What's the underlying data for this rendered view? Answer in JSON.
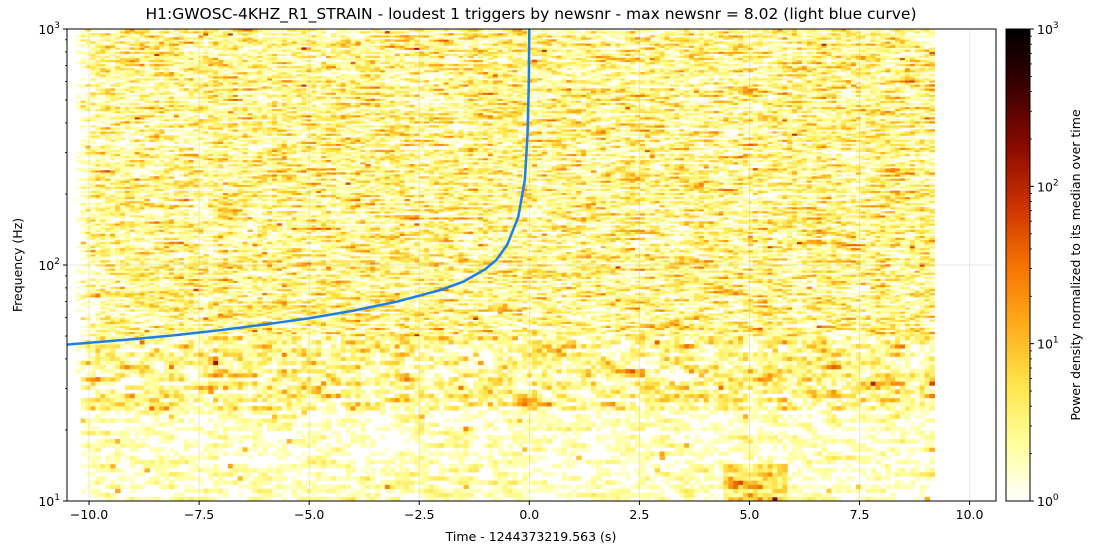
{
  "chart_data": {
    "type": "heatmap",
    "title": "H1:GWOSC-4KHZ_R1_STRAIN - loudest 1 triggers by newsnr - max newsnr = 8.02 (light blue curve)",
    "xlabel": "Time - 1244373219.563 (s)",
    "ylabel": "Frequency (Hz)",
    "xlim": [
      -10.5,
      10.6
    ],
    "ylim": [
      10,
      1000
    ],
    "yscale": "log",
    "grid": true,
    "x_ticks": [
      -10.0,
      -7.5,
      -5.0,
      -2.5,
      0.0,
      2.5,
      5.0,
      7.5,
      10.0
    ],
    "x_tick_labels": [
      "−10.0",
      "−7.5",
      "−5.0",
      "−2.5",
      "0.0",
      "2.5",
      "5.0",
      "7.5",
      "10.0"
    ],
    "y_ticks": [
      {
        "value": 10,
        "base": "10",
        "exp": "1"
      },
      {
        "value": 100,
        "base": "10",
        "exp": "2"
      },
      {
        "value": 1000,
        "base": "10",
        "exp": "3"
      }
    ],
    "heatmap": {
      "time_range": [
        -10.3,
        9.2
      ],
      "frequency_range": [
        10,
        1000
      ],
      "note": "Power density normalized to its median over time, mostly ~1-10 with scattered hot spots"
    },
    "trigger_curve": {
      "color": "#1f7fe8",
      "points": [
        [
          -10.5,
          46
        ],
        [
          -9.0,
          48.5
        ],
        [
          -8.0,
          50.5
        ],
        [
          -7.0,
          53
        ],
        [
          -6.0,
          56
        ],
        [
          -5.0,
          59.5
        ],
        [
          -4.0,
          64
        ],
        [
          -3.0,
          70
        ],
        [
          -2.0,
          78.5
        ],
        [
          -1.5,
          85
        ],
        [
          -1.0,
          96
        ],
        [
          -0.75,
          105
        ],
        [
          -0.5,
          122
        ],
        [
          -0.25,
          160
        ],
        [
          -0.1,
          230
        ],
        [
          -0.04,
          360
        ],
        [
          -0.01,
          600
        ],
        [
          0.0,
          1000
        ]
      ]
    },
    "colorbar": {
      "label": "Power density normalized to its median over time",
      "range": [
        1,
        1000
      ],
      "scale": "log",
      "ticks": [
        {
          "value": 1,
          "base": "10",
          "exp": "0"
        },
        {
          "value": 10,
          "base": "10",
          "exp": "1"
        },
        {
          "value": 100,
          "base": "10",
          "exp": "2"
        },
        {
          "value": 1000,
          "base": "10",
          "exp": "3"
        }
      ],
      "colormap": [
        "#ffffff",
        "#ffff9a",
        "#ffe34a",
        "#ffab1a",
        "#f57200",
        "#cc3300",
        "#8a0a00",
        "#3d0000",
        "#000000"
      ]
    }
  }
}
